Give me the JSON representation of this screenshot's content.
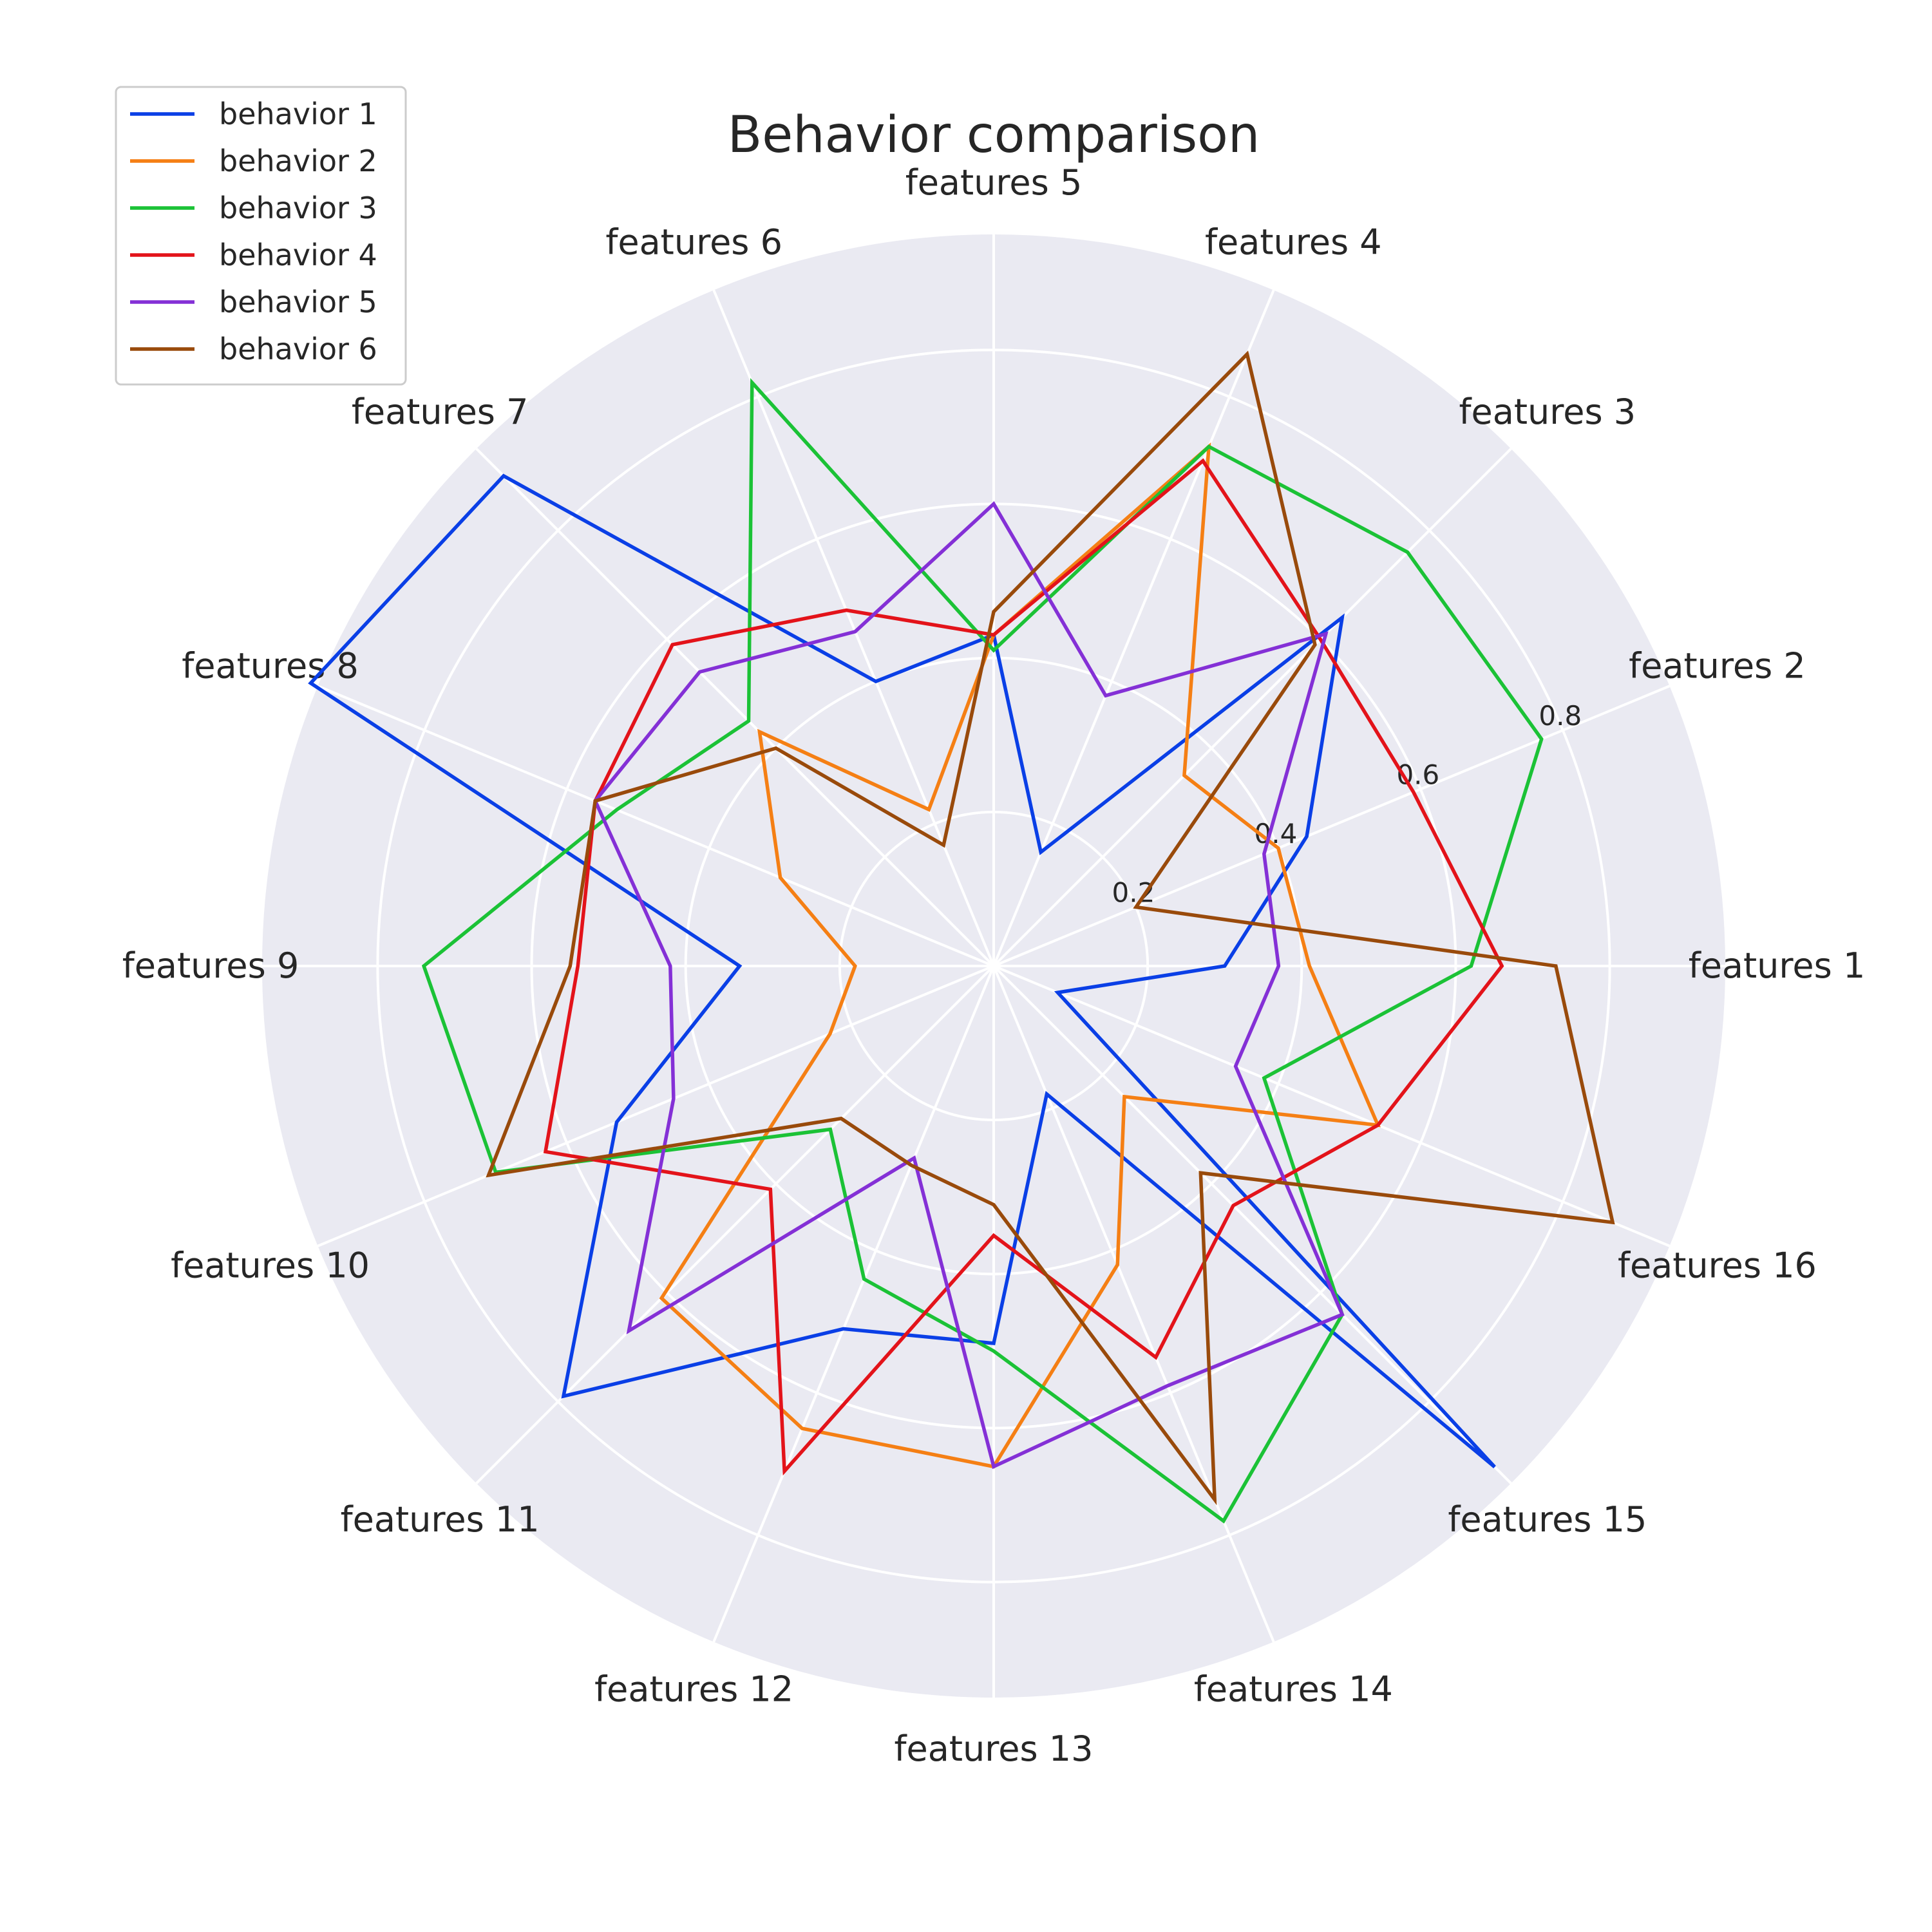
{
  "chart_data": {
    "type": "radar",
    "title": "Behavior comparison",
    "categories": [
      "features 1",
      "features 2",
      "features 3",
      "features 4",
      "features 5",
      "features 6",
      "features 7",
      "features 8",
      "features 9",
      "features 10",
      "features 11",
      "features 12",
      "features 13",
      "features 14",
      "features 15",
      "features 16"
    ],
    "rticks": [
      0.2,
      0.4,
      0.6,
      0.8
    ],
    "rtick_labels": [
      "0.2",
      "0.4",
      "0.6",
      "0.8"
    ],
    "rlim": [
      0,
      0.95
    ],
    "grid": true,
    "legend_position": "upper-left",
    "series": [
      {
        "name": "behavior 1",
        "color": "#0a3fe6",
        "values": [
          0.3,
          0.44,
          0.64,
          0.16,
          0.43,
          0.4,
          0.9,
          0.96,
          0.33,
          0.53,
          0.79,
          0.51,
          0.49,
          0.18,
          0.92,
          0.09
        ]
      },
      {
        "name": "behavior 2",
        "color": "#f57f14",
        "values": [
          0.41,
          0.4,
          0.35,
          0.73,
          0.43,
          0.22,
          0.43,
          0.3,
          0.18,
          0.23,
          0.61,
          0.65,
          0.65,
          0.42,
          0.24,
          0.54
        ]
      },
      {
        "name": "behavior 3",
        "color": "#1bc236",
        "values": [
          0.62,
          0.77,
          0.76,
          0.73,
          0.41,
          0.82,
          0.45,
          0.53,
          0.74,
          0.7,
          0.3,
          0.44,
          0.5,
          0.78,
          0.64,
          0.38
        ]
      },
      {
        "name": "behavior 4",
        "color": "#e3131a",
        "values": [
          0.66,
          0.59,
          0.6,
          0.71,
          0.43,
          0.5,
          0.59,
          0.56,
          0.54,
          0.63,
          0.41,
          0.71,
          0.35,
          0.55,
          0.44,
          0.54
        ]
      },
      {
        "name": "behavior 5",
        "color": "#8430d6",
        "values": [
          0.37,
          0.38,
          0.61,
          0.38,
          0.6,
          0.47,
          0.54,
          0.56,
          0.42,
          0.45,
          0.67,
          0.27,
          0.65,
          0.59,
          0.64,
          0.34
        ]
      },
      {
        "name": "behavior 6",
        "color": "#994a0b",
        "values": [
          0.73,
          0.2,
          0.59,
          0.86,
          0.46,
          0.17,
          0.4,
          0.56,
          0.55,
          0.71,
          0.28,
          0.28,
          0.31,
          0.75,
          0.38,
          0.87
        ]
      }
    ]
  }
}
